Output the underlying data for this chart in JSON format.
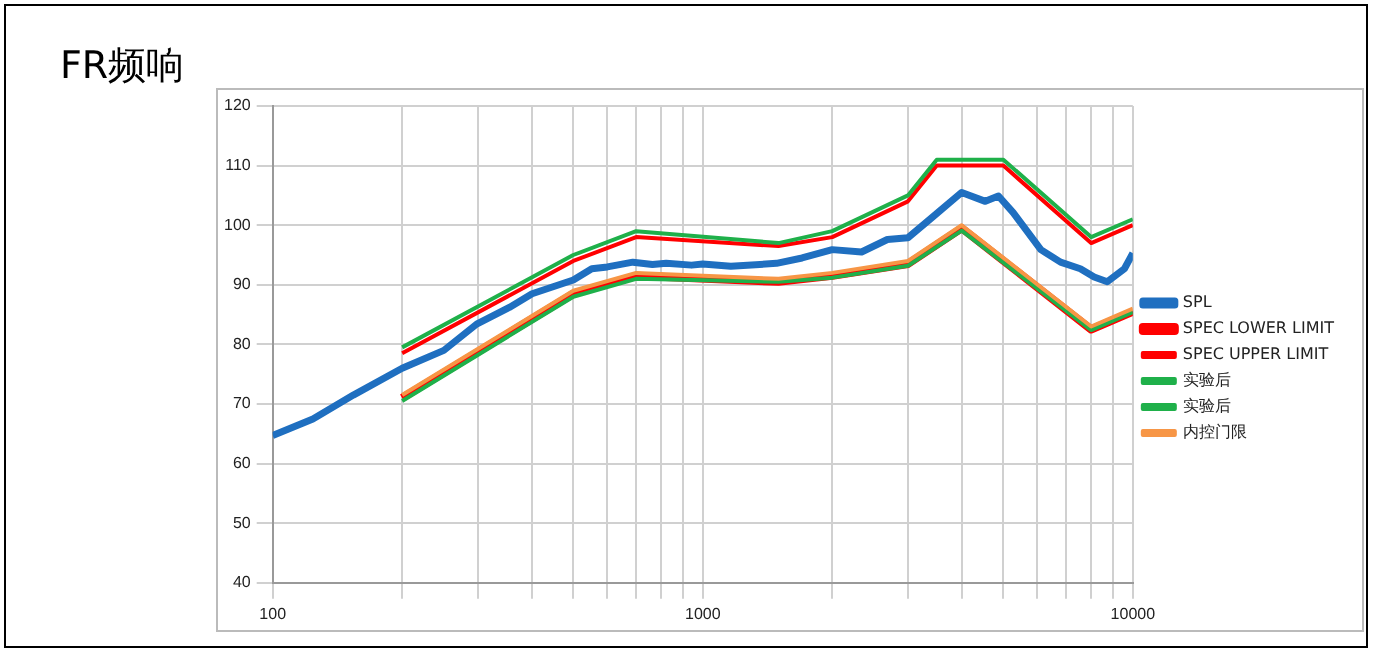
{
  "chart_data": {
    "type": "line",
    "title": "FR频响",
    "log": "x",
    "xlim": [
      100,
      10000
    ],
    "xticks": [
      100,
      {
        "value": 200,
        "label": null
      },
      {
        "value": 300,
        "label": null
      },
      {
        "value": 400,
        "label": null
      },
      {
        "value": 500,
        "label": null
      },
      {
        "value": 600,
        "label": null
      },
      {
        "value": 700,
        "label": null
      },
      {
        "value": 800,
        "label": null
      },
      {
        "value": 900,
        "label": null
      },
      1000,
      {
        "value": 2000,
        "label": null
      },
      {
        "value": 3000,
        "label": null
      },
      {
        "value": 4000,
        "label": null
      },
      {
        "value": 5000,
        "label": null
      },
      {
        "value": 6000,
        "label": null
      },
      {
        "value": 7000,
        "label": null
      },
      {
        "value": 8000,
        "label": null
      },
      {
        "value": 9000,
        "label": null
      },
      10000
    ],
    "ylim": [
      40,
      120
    ],
    "yticks": [
      40,
      50,
      60,
      70,
      80,
      90,
      100,
      110,
      120
    ],
    "grid": true,
    "legend": "right",
    "marker": "none",
    "series": [
      {
        "name": "SPL",
        "color": "#1f6fc0",
        "x": [
          100,
          124,
          154,
          200,
          250,
          298,
          355,
          401,
          500,
          552,
          600,
          688,
          764,
          822,
          942,
          1000,
          1162,
          1484,
          1702,
          2000,
          2340,
          2687,
          3000,
          3440,
          4000,
          4540,
          4870,
          5270,
          6110,
          6790,
          7550,
          8130,
          8720,
          9560,
          10000
        ],
        "values": [
          64.7,
          67.5,
          71.5,
          76,
          79,
          83.4,
          86.2,
          88.5,
          90.8,
          92.7,
          93,
          93.8,
          93.4,
          93.6,
          93.3,
          93.5,
          93.1,
          93.6,
          94.5,
          95.9,
          95.5,
          97.6,
          97.9,
          101.5,
          105.5,
          104,
          104.9,
          102.1,
          95.9,
          93.8,
          92.7,
          91.3,
          90.5,
          92.7,
          95.3
        ]
      },
      {
        "name": "SPEC LOWER LIMIT",
        "color": "#ff0000",
        "x": [
          200,
          500,
          700,
          1500,
          2000,
          3000,
          4000,
          8000,
          10000
        ],
        "values": [
          71,
          88.5,
          91.5,
          90.5,
          91.5,
          93.5,
          99.5,
          82.5,
          85.5
        ]
      },
      {
        "name": "SPEC UPPER LIMIT",
        "color": "#ff0000",
        "x": [
          200,
          500,
          700,
          1500,
          2000,
          3000,
          3500,
          5000,
          8000,
          10000
        ],
        "values": [
          78.5,
          94,
          98,
          96.5,
          98,
          104,
          110,
          110,
          97,
          100
        ]
      },
      {
        "name": "实验后",
        "color": "#1fb04a",
        "x": [
          200,
          500,
          700,
          1500,
          2000,
          3000,
          3500,
          5000,
          8000,
          10000
        ],
        "values": [
          79.5,
          95,
          99,
          97,
          99,
          105,
          111,
          111,
          98,
          101
        ]
      },
      {
        "name": "实验后",
        "color": "#1fb04a",
        "x": [
          200,
          500,
          700,
          1500,
          2000,
          3000,
          4000,
          8000,
          10000
        ],
        "values": [
          70.5,
          88,
          91,
          90.5,
          91.2,
          93.2,
          99.1,
          82.4,
          85.4
        ]
      },
      {
        "name": "内控门限",
        "color": "#f79646",
        "x": [
          200,
          500,
          700,
          1500,
          2000,
          3000,
          4000,
          8000,
          10000
        ],
        "values": [
          71.5,
          89,
          92,
          91,
          92,
          94,
          100,
          83,
          86
        ]
      }
    ]
  }
}
